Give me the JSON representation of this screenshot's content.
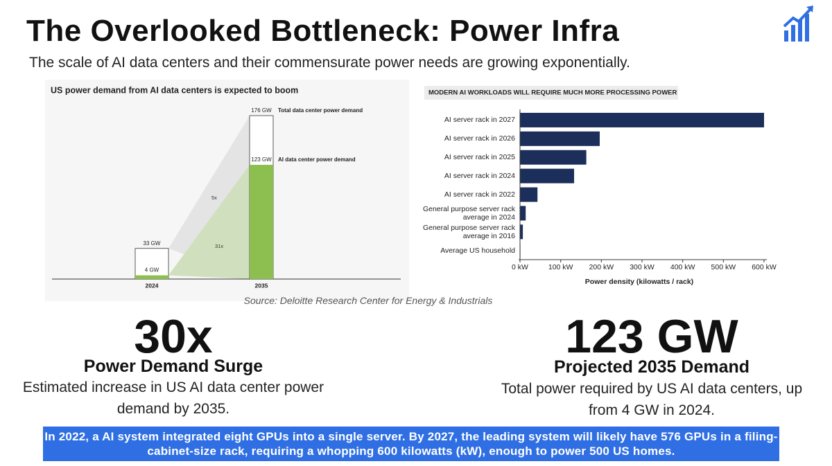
{
  "title": "The Overlooked Bottleneck: Power Infra",
  "subtitle": "The scale of AI data centers and their commensurate power needs are growing exponentially.",
  "source": "Source: Deloitte Research Center for Energy & Industrials",
  "stats": [
    {
      "value": "30x",
      "heading": "Power Demand Surge",
      "description": "Estimated increase in US AI data center power demand by 2035."
    },
    {
      "value": "123 GW",
      "heading": "Projected 2035 Demand",
      "description": "Total power required by US AI data centers, up from 4 GW in 2024."
    }
  ],
  "banner": "In 2022, a AI system integrated eight GPUs into a single server. By 2027, the leading system will likely have 576 GPUs in a filing-cabinet-size rack, requiring a whopping 600 kilowatts (kW), enough to power 500 US homes.",
  "chart_data": [
    {
      "type": "bar",
      "title": "US power demand from AI data centers is expected to boom",
      "categories": [
        "2024",
        "2035"
      ],
      "series": [
        {
          "name": "Total data center power demand",
          "color": "#ffffff",
          "values": [
            33,
            176
          ],
          "value_labels": [
            "33 GW",
            "176 GW"
          ]
        },
        {
          "name": "AI data center power demand",
          "color": "#8cbf4f",
          "values": [
            4,
            123
          ],
          "value_labels": [
            "4 GW",
            "123 GW"
          ]
        }
      ],
      "annotations": [
        "5x",
        "31x"
      ]
    },
    {
      "type": "barh",
      "title": "MODERN AI WORKLOADS WILL REQUIRE MUCH MORE PROCESSING POWER",
      "categories": [
        "AI server rack in 2027",
        "AI server rack in 2026",
        "AI server rack in 2025",
        "AI server rack in 2024",
        "AI server rack in 2022",
        "General purpose server rack average in 2024",
        "General purpose server rack average in 2016",
        "Average US household"
      ],
      "values": [
        600,
        196,
        163,
        133,
        43,
        14,
        7,
        1
      ],
      "color": "#1c2e5a",
      "xlabel": "Power density (kilowatts / rack)",
      "xlim": [
        0,
        600
      ],
      "xticks": [
        {
          "value": 0,
          "label": "0 kW"
        },
        {
          "value": 100,
          "label": "100 kW"
        },
        {
          "value": 200,
          "label": "200 kW"
        },
        {
          "value": 300,
          "label": "300 kW"
        },
        {
          "value": 400,
          "label": "400 kW"
        },
        {
          "value": 500,
          "label": "500 kW"
        },
        {
          "value": 600,
          "label": "600 kW"
        }
      ]
    }
  ]
}
